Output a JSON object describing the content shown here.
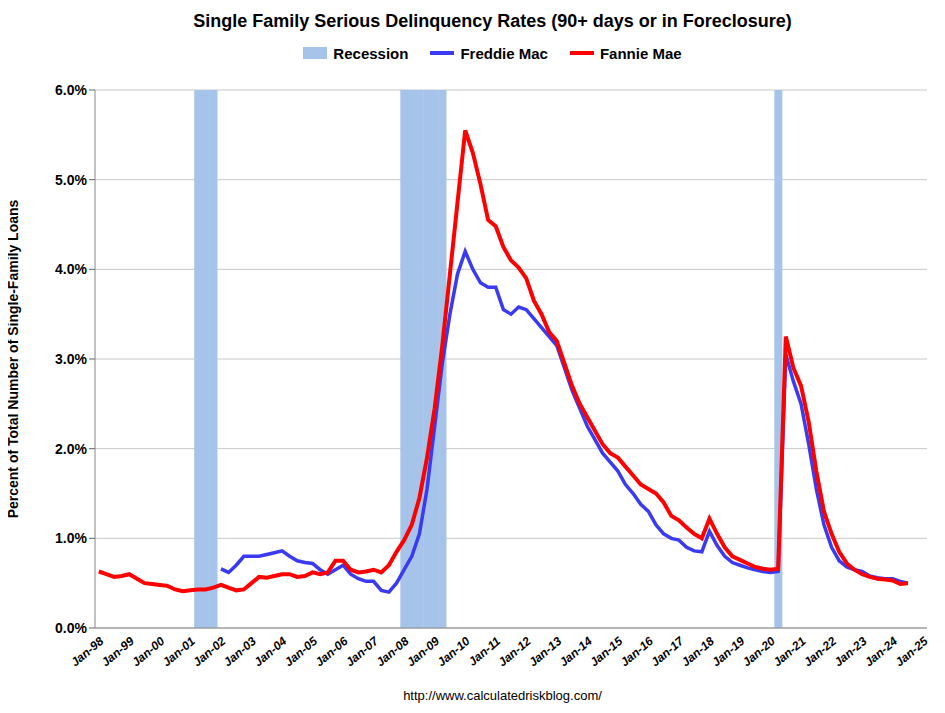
{
  "chart_data": {
    "type": "line",
    "title": "Single Family Serious Delinquency Rates (90+ days or in Foreclosure)",
    "y_label": "Percent of Total Number of Single-Family Loans",
    "annotations": [
      "http://www.calculatedriskblog.com/"
    ],
    "categories": [
      "Jan-98",
      null,
      null,
      null,
      "Jan-99",
      null,
      null,
      null,
      "Jan-00",
      null,
      null,
      null,
      "Jan-01",
      null,
      null,
      null,
      "Jan-02",
      null,
      null,
      null,
      "Jan-03",
      null,
      null,
      null,
      "Jan-04",
      null,
      null,
      null,
      "Jan-05",
      null,
      null,
      null,
      "Jan-06",
      null,
      null,
      null,
      "Jan-07",
      null,
      null,
      null,
      "Jan-08",
      null,
      null,
      null,
      "Jan-09",
      null,
      null,
      null,
      "Jan-10",
      null,
      null,
      null,
      "Jan-11",
      null,
      null,
      null,
      "Jan-12",
      null,
      null,
      null,
      "Jan-13",
      null,
      null,
      null,
      "Jan-14",
      null,
      null,
      null,
      "Jan-15",
      null,
      null,
      null,
      "Jan-16",
      null,
      null,
      null,
      "Jan-17",
      null,
      null,
      null,
      "Jan-18",
      null,
      null,
      null,
      "Jan-19",
      null,
      null,
      null,
      "Jan-20",
      null,
      null,
      null,
      "Jan-21",
      null,
      null,
      null,
      "Jan-22",
      null,
      null,
      null,
      "Jan-23",
      null,
      null,
      null,
      "Jan-24",
      null,
      null,
      null,
      "Jan-25"
    ],
    "series": [
      {
        "name": "Recession",
        "type": "bar",
        "color": "#a6c3ea",
        "values": [
          null,
          null,
          null,
          null,
          null,
          null,
          null,
          null,
          null,
          null,
          null,
          null,
          null,
          6,
          6,
          6,
          null,
          null,
          null,
          null,
          null,
          null,
          null,
          null,
          null,
          null,
          null,
          null,
          null,
          null,
          null,
          null,
          null,
          null,
          null,
          null,
          null,
          null,
          null,
          null,
          6,
          6,
          6,
          6,
          6,
          6,
          null,
          null,
          null,
          null,
          null,
          null,
          null,
          null,
          null,
          null,
          null,
          null,
          null,
          null,
          null,
          null,
          null,
          null,
          null,
          null,
          null,
          null,
          null,
          null,
          null,
          null,
          null,
          null,
          null,
          null,
          null,
          null,
          null,
          null,
          null,
          null,
          null,
          null,
          null,
          null,
          null,
          null,
          null,
          6,
          null,
          null,
          null,
          null,
          null,
          null,
          null,
          null,
          null,
          null,
          null,
          null,
          null,
          null,
          null,
          null,
          null,
          null,
          null
        ]
      },
      {
        "name": "Freddie Mac",
        "type": "line",
        "color": "#3a3af2",
        "values": [
          null,
          null,
          null,
          null,
          null,
          null,
          null,
          null,
          null,
          null,
          null,
          null,
          null,
          null,
          null,
          null,
          0.66,
          0.62,
          0.7,
          0.8,
          0.8,
          0.8,
          0.82,
          0.84,
          0.86,
          0.8,
          0.75,
          0.73,
          0.72,
          0.65,
          0.6,
          0.65,
          0.7,
          0.6,
          0.55,
          0.52,
          0.52,
          0.42,
          0.4,
          0.5,
          0.65,
          0.8,
          1.05,
          1.55,
          2.25,
          2.95,
          3.5,
          3.95,
          4.2,
          4.0,
          3.85,
          3.8,
          3.8,
          3.55,
          3.5,
          3.58,
          3.55,
          3.45,
          3.35,
          3.25,
          3.15,
          2.9,
          2.65,
          2.45,
          2.25,
          2.1,
          1.95,
          1.85,
          1.75,
          1.6,
          1.5,
          1.38,
          1.3,
          1.15,
          1.05,
          1.0,
          0.98,
          0.9,
          0.86,
          0.85,
          1.08,
          0.92,
          0.8,
          0.73,
          0.7,
          0.67,
          0.65,
          0.63,
          0.62,
          0.63,
          3.05,
          2.75,
          2.5,
          2.05,
          1.55,
          1.15,
          0.9,
          0.75,
          0.68,
          0.65,
          0.63,
          0.58,
          0.56,
          0.55,
          0.55,
          0.52,
          0.5,
          null,
          null
        ]
      },
      {
        "name": "Fannie Mae",
        "type": "line",
        "color": "#ff0000",
        "values": [
          0.63,
          0.6,
          0.57,
          0.58,
          0.6,
          0.55,
          0.5,
          0.49,
          0.48,
          0.47,
          0.43,
          0.41,
          0.42,
          0.43,
          0.43,
          0.45,
          0.48,
          0.45,
          0.42,
          0.43,
          0.5,
          0.57,
          0.56,
          0.58,
          0.6,
          0.6,
          0.57,
          0.58,
          0.62,
          0.6,
          0.62,
          0.75,
          0.75,
          0.65,
          0.62,
          0.63,
          0.65,
          0.62,
          0.7,
          0.85,
          0.98,
          1.15,
          1.45,
          1.9,
          2.45,
          3.15,
          3.95,
          4.75,
          5.55,
          5.3,
          4.95,
          4.55,
          4.48,
          4.25,
          4.1,
          4.02,
          3.9,
          3.65,
          3.5,
          3.3,
          3.2,
          2.95,
          2.7,
          2.5,
          2.35,
          2.2,
          2.05,
          1.95,
          1.9,
          1.8,
          1.7,
          1.6,
          1.55,
          1.5,
          1.4,
          1.25,
          1.2,
          1.12,
          1.05,
          1.0,
          1.22,
          1.05,
          0.9,
          0.8,
          0.76,
          0.72,
          0.68,
          0.66,
          0.65,
          0.66,
          3.25,
          2.9,
          2.7,
          2.3,
          1.75,
          1.3,
          1.05,
          0.85,
          0.72,
          0.65,
          0.6,
          0.57,
          0.55,
          0.54,
          0.53,
          0.49,
          0.5,
          null,
          null
        ]
      }
    ],
    "ylim": [
      0,
      6
    ],
    "yticks": [
      {
        "value": 0,
        "label": "0.0%"
      },
      {
        "value": 1,
        "label": "1.0%"
      },
      {
        "value": 2,
        "label": "2.0%"
      },
      {
        "value": 3,
        "label": "3.0%"
      },
      {
        "value": 4,
        "label": "4.0%"
      },
      {
        "value": 5,
        "label": "5.0%"
      },
      {
        "value": 6,
        "label": "6.0%"
      }
    ],
    "grid": true
  }
}
